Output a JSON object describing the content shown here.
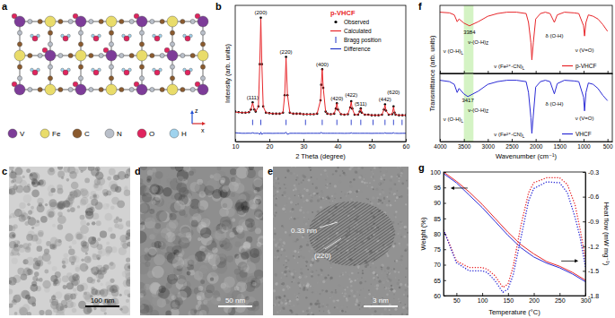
{
  "panel_labels": [
    "a",
    "b",
    "c",
    "d",
    "e",
    "f",
    "g"
  ],
  "structure": {
    "atoms": [
      {
        "label": "V",
        "color": "#7d3c98"
      },
      {
        "label": "Fe",
        "color": "#e9dc6a"
      },
      {
        "label": "C",
        "color": "#8a5a2e"
      },
      {
        "label": "N",
        "color": "#b9bfc9"
      },
      {
        "label": "O",
        "color": "#e0245e"
      },
      {
        "label": "H",
        "color": "#9fd3ee"
      }
    ],
    "axes": [
      "x",
      "z"
    ]
  },
  "micrographs": [
    {
      "scale_bar": "100 nm"
    },
    {
      "scale_bar": "50 nm"
    },
    {
      "scale_bar": "3 nm",
      "annotations": [
        "0.33 nm",
        "(220)"
      ]
    }
  ],
  "chart_data": [
    {
      "type": "line",
      "title": "p-VHCF",
      "xlabel": "2 Theta (degree)",
      "ylabel": "Intensity (arb. units)",
      "xlim": [
        10,
        60
      ],
      "ylim": [
        -20,
        112
      ],
      "xticks": [
        10,
        20,
        30,
        40,
        50,
        60
      ],
      "tick_labels": "x",
      "legend": "upper right",
      "x": [
        10,
        11,
        12,
        13,
        14,
        14.6,
        15.1,
        15.6,
        16,
        16.8,
        17.2,
        17.5,
        17.8,
        18.2,
        19,
        20,
        21,
        22,
        23,
        24,
        24.5,
        24.9,
        25.3,
        26,
        27,
        28,
        29,
        30,
        31,
        32,
        33,
        34,
        35,
        35.2,
        35.5,
        35.8,
        36.5,
        37,
        38,
        39,
        39.5,
        39.8,
        40.1,
        41,
        42,
        43,
        43.7,
        44,
        44.3,
        45,
        46,
        46.5,
        46.8,
        47.1,
        48,
        49,
        50,
        51,
        52,
        53,
        53.6,
        53.9,
        54.2,
        55,
        56,
        56.4,
        56.7,
        57,
        58,
        59,
        60
      ],
      "series": [
        {
          "name": "Observed",
          "type": "scatter",
          "marker": "circle",
          "color": "#000000",
          "values": [
            9,
            8.5,
            8,
            8,
            8.5,
            11,
            18,
            11,
            9,
            14,
            55,
            100,
            55,
            14,
            8,
            7.5,
            7,
            7,
            7,
            8,
            25,
            62,
            25,
            8,
            7,
            7,
            7,
            6.5,
            6.5,
            6.5,
            6.5,
            7,
            20,
            35,
            50,
            32,
            9,
            7,
            6.5,
            7,
            12,
            17,
            11,
            6.5,
            6,
            6.5,
            13,
            19,
            12,
            6,
            6,
            9,
            12,
            8,
            6,
            6,
            5.5,
            5.5,
            5.5,
            6,
            11,
            16,
            10,
            6,
            6.5,
            14,
            8,
            6,
            5.5,
            5.5,
            5.5
          ]
        },
        {
          "name": "Calculated",
          "type": "line",
          "color": "#e8262a",
          "values": [
            8.5,
            8.3,
            8,
            8,
            8.4,
            11,
            17.5,
            11,
            9,
            14,
            56,
            99,
            56,
            14,
            8,
            7.5,
            7.1,
            7,
            7,
            8,
            25,
            61,
            26,
            8,
            7,
            7,
            7,
            6.6,
            6.5,
            6.5,
            6.5,
            7,
            20,
            34,
            50,
            32,
            9,
            7,
            6.5,
            7,
            12,
            17,
            11,
            6.5,
            6.1,
            6.5,
            13,
            18.5,
            12,
            6,
            6,
            9,
            12,
            8,
            6,
            6,
            5.6,
            5.5,
            5.5,
            6,
            11,
            15.5,
            10,
            6,
            6.5,
            13.5,
            8,
            6,
            5.6,
            5.5,
            5.5
          ]
        },
        {
          "name": "Difference",
          "type": "line",
          "color": "#2336c8",
          "values": [
            -11.5,
            -11.8,
            -12,
            -12,
            -11.9,
            -12,
            -11.5,
            -12,
            -12,
            -12,
            -13,
            -11,
            -13,
            -12,
            -12,
            -12,
            -12.1,
            -12,
            -12,
            -12,
            -12,
            -11,
            -13,
            -12,
            -12,
            -12,
            -12,
            -12.1,
            -12,
            -12,
            -12,
            -12,
            -12,
            -11,
            -12,
            -12,
            -12,
            -12,
            -12,
            -12,
            -12,
            -12,
            -12,
            -12,
            -12.1,
            -12,
            -12,
            -11.5,
            -12,
            -12,
            -12,
            -12,
            -12,
            -12,
            -12,
            -12,
            -12.1,
            -12,
            -12,
            -12,
            -12,
            -11.5,
            -12,
            -12,
            -12,
            -11.5,
            -12,
            -12,
            -12.1,
            -12,
            -12
          ]
        }
      ],
      "bragg_positions": {
        "name": "Bragg position",
        "color": "#2336c8",
        "x": [
          15.1,
          17.5,
          24.9,
          30.6,
          35.5,
          39.8,
          44,
          46.8,
          50.4,
          53.9,
          56.4,
          58.9
        ]
      },
      "annotations": [
        {
          "text": "(111)",
          "x": 15.1,
          "y": 21
        },
        {
          "text": "(200)",
          "x": 17.5,
          "y": 103
        },
        {
          "text": "(220)",
          "x": 24.9,
          "y": 65
        },
        {
          "text": "(400)",
          "x": 35.5,
          "y": 53
        },
        {
          "text": "(420)",
          "x": 39.8,
          "y": 20
        },
        {
          "text": "(422)",
          "x": 44,
          "y": 23
        },
        {
          "text": "(511)",
          "x": 46.8,
          "y": 15
        },
        {
          "text": "(442)",
          "x": 53.9,
          "y": 19
        },
        {
          "text": "(620)",
          "x": 56.4,
          "y": 26
        }
      ]
    },
    {
      "type": "line",
      "xlim": [
        4000,
        400
      ],
      "ylim": [
        0,
        100
      ],
      "xticks": [
        4000,
        3500,
        3000,
        2500,
        2000,
        1500,
        1000,
        500
      ],
      "tick_labels": false,
      "legend": "lower right",
      "highlight_range": [
        3500,
        3300
      ],
      "series": [
        {
          "name": "p-VHCF",
          "color": "#e8262a",
          "x": [
            4000,
            3800,
            3700,
            3640,
            3600,
            3500,
            3384,
            3200,
            3000,
            2800,
            2600,
            2400,
            2200,
            2150,
            2100,
            2080,
            2050,
            2000,
            1900,
            1800,
            1700,
            1610,
            1550,
            1400,
            1200,
            1100,
            1000,
            980,
            950,
            900,
            800,
            700,
            600,
            500
          ],
          "values": [
            90,
            89,
            86,
            76,
            80,
            74,
            70,
            76,
            84,
            88,
            90,
            90,
            88,
            75,
            45,
            20,
            45,
            80,
            88,
            90,
            88,
            75,
            86,
            90,
            89,
            88,
            70,
            55,
            75,
            86,
            84,
            80,
            72,
            62
          ]
        }
      ],
      "annotations": [
        {
          "text": "ν (O-H)",
          "sub": "L",
          "x": 3720,
          "y": 30
        },
        {
          "text": "3384",
          "x": 3384,
          "y": 58
        },
        {
          "text": "ν-(O-H)",
          "sub": "Z",
          "x": 3200,
          "y": 44
        },
        {
          "text": "ν (Fe²⁺-CN)",
          "sub": "L",
          "x": 2550,
          "y": 8
        },
        {
          "text": "δ (O-H)",
          "x": 1610,
          "y": 52
        },
        {
          "text": "ν (V=O)",
          "x": 980,
          "y": 32
        }
      ]
    },
    {
      "type": "line",
      "xlabel": "Wavenumber (cm⁻¹)",
      "ylabel": "Transmittance (arb. units)",
      "xlim": [
        4000,
        400
      ],
      "ylim": [
        0,
        100
      ],
      "xticks": [
        4000,
        3500,
        3000,
        2500,
        2000,
        1500,
        1000,
        500
      ],
      "tick_labels": "x",
      "legend": "lower right",
      "highlight_range": [
        3500,
        3300
      ],
      "series": [
        {
          "name": "VHCF",
          "color": "#2b2bd6",
          "x": [
            4000,
            3800,
            3700,
            3640,
            3600,
            3500,
            3417,
            3200,
            3000,
            2800,
            2600,
            2400,
            2200,
            2150,
            2100,
            2080,
            2050,
            2000,
            1900,
            1800,
            1700,
            1610,
            1550,
            1400,
            1200,
            1100,
            1000,
            980,
            950,
            900,
            800,
            700,
            600,
            500
          ],
          "values": [
            90,
            88,
            84,
            72,
            78,
            70,
            66,
            74,
            84,
            88,
            90,
            90,
            88,
            72,
            35,
            12,
            38,
            80,
            88,
            90,
            88,
            70,
            85,
            90,
            89,
            88,
            65,
            45,
            72,
            86,
            84,
            78,
            68,
            60
          ]
        }
      ],
      "annotations": [
        {
          "text": "ν (O-H)",
          "sub": "L",
          "x": 3720,
          "y": 30
        },
        {
          "text": "3417",
          "x": 3417,
          "y": 58
        },
        {
          "text": "ν-(O-H)",
          "sub": "Z",
          "x": 3200,
          "y": 44
        },
        {
          "text": "ν (Fe²⁺-CN)",
          "sub": "L",
          "x": 2550,
          "y": 8
        },
        {
          "text": "δ (O-H)",
          "x": 1610,
          "y": 52
        },
        {
          "text": "ν (V=O)",
          "x": 980,
          "y": 32
        }
      ]
    },
    {
      "type": "line",
      "xlabel": "Temperature (°C)",
      "ylabel": "Weight (%)",
      "y2label": "Heat flow (mW mg⁻¹)",
      "xlim": [
        25,
        300
      ],
      "ylim": [
        60,
        100
      ],
      "y2lim": [
        -1.8,
        -0.3
      ],
      "xticks": [
        50,
        100,
        150,
        200,
        250,
        300
      ],
      "yticks": [
        60,
        65,
        70,
        75,
        80,
        85,
        90,
        95,
        100
      ],
      "y2ticks": [
        -1.8,
        -1.5,
        -1.2,
        -0.9,
        -0.6,
        -0.3
      ],
      "series": [
        {
          "color": "#e8262a",
          "line_style": "solid",
          "x": [
            25,
            50,
            75,
            100,
            125,
            150,
            175,
            200,
            225,
            250,
            275,
            300
          ],
          "values": [
            100,
            97,
            93.5,
            89.5,
            85,
            80.5,
            76.5,
            73.5,
            71,
            69.5,
            67.5,
            65
          ]
        },
        {
          "color": "#2b2bd6",
          "line_style": "solid",
          "x": [
            25,
            50,
            75,
            100,
            125,
            150,
            175,
            200,
            225,
            250,
            275,
            300
          ],
          "values": [
            99.5,
            96.5,
            92.5,
            88.5,
            84,
            79.5,
            75.5,
            72.5,
            70.5,
            69,
            67,
            64.5
          ]
        },
        {
          "color": "#e8262a",
          "line_style": "dotted",
          "axis": "y2",
          "x": [
            25,
            50,
            75,
            100,
            110,
            125,
            140,
            150,
            160,
            175,
            190,
            200,
            225,
            250,
            265,
            280,
            290,
            300
          ],
          "values": [
            -1.0,
            -1.38,
            -1.46,
            -1.46,
            -1.48,
            -1.56,
            -1.7,
            -1.66,
            -1.45,
            -0.95,
            -0.55,
            -0.43,
            -0.37,
            -0.37,
            -0.45,
            -0.7,
            -1.0,
            -1.35
          ]
        },
        {
          "color": "#2b2bd6",
          "line_style": "dotted",
          "axis": "y2",
          "x": [
            25,
            50,
            75,
            100,
            110,
            125,
            140,
            150,
            160,
            175,
            190,
            200,
            225,
            250,
            265,
            280,
            290,
            300
          ],
          "values": [
            -1.0,
            -1.4,
            -1.5,
            -1.5,
            -1.52,
            -1.62,
            -1.76,
            -1.72,
            -1.55,
            -1.1,
            -0.65,
            -0.5,
            -0.42,
            -0.43,
            -0.55,
            -0.85,
            -1.1,
            -1.45
          ]
        }
      ]
    }
  ]
}
